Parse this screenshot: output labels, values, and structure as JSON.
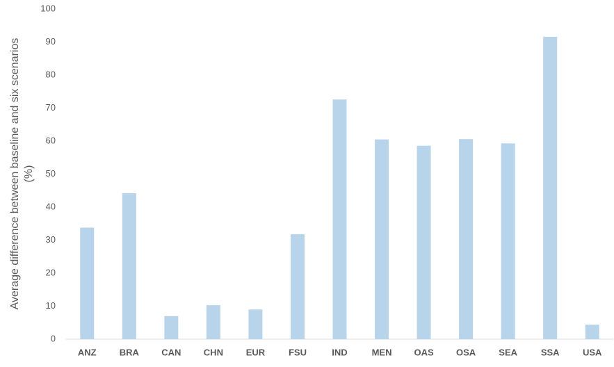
{
  "chart_data": {
    "type": "bar",
    "ylabel": [
      "Average difference between baseline and six scenarios",
      "(%)"
    ],
    "categories": [
      "ANZ",
      "BRA",
      "CAN",
      "CHN",
      "EUR",
      "FSU",
      "IND",
      "MEN",
      "OAS",
      "OSA",
      "SEA",
      "SSA",
      "USA"
    ],
    "values": [
      33.8,
      44.2,
      7,
      10.3,
      9,
      31.8,
      72.6,
      60.5,
      58.6,
      60.6,
      59.3,
      91.6,
      4.4
    ],
    "color": "#b8d4eb",
    "ylim": [
      0,
      100
    ],
    "yticks": [
      0,
      10,
      20,
      30,
      40,
      50,
      60,
      70,
      80,
      90,
      100
    ],
    "grid": false
  }
}
